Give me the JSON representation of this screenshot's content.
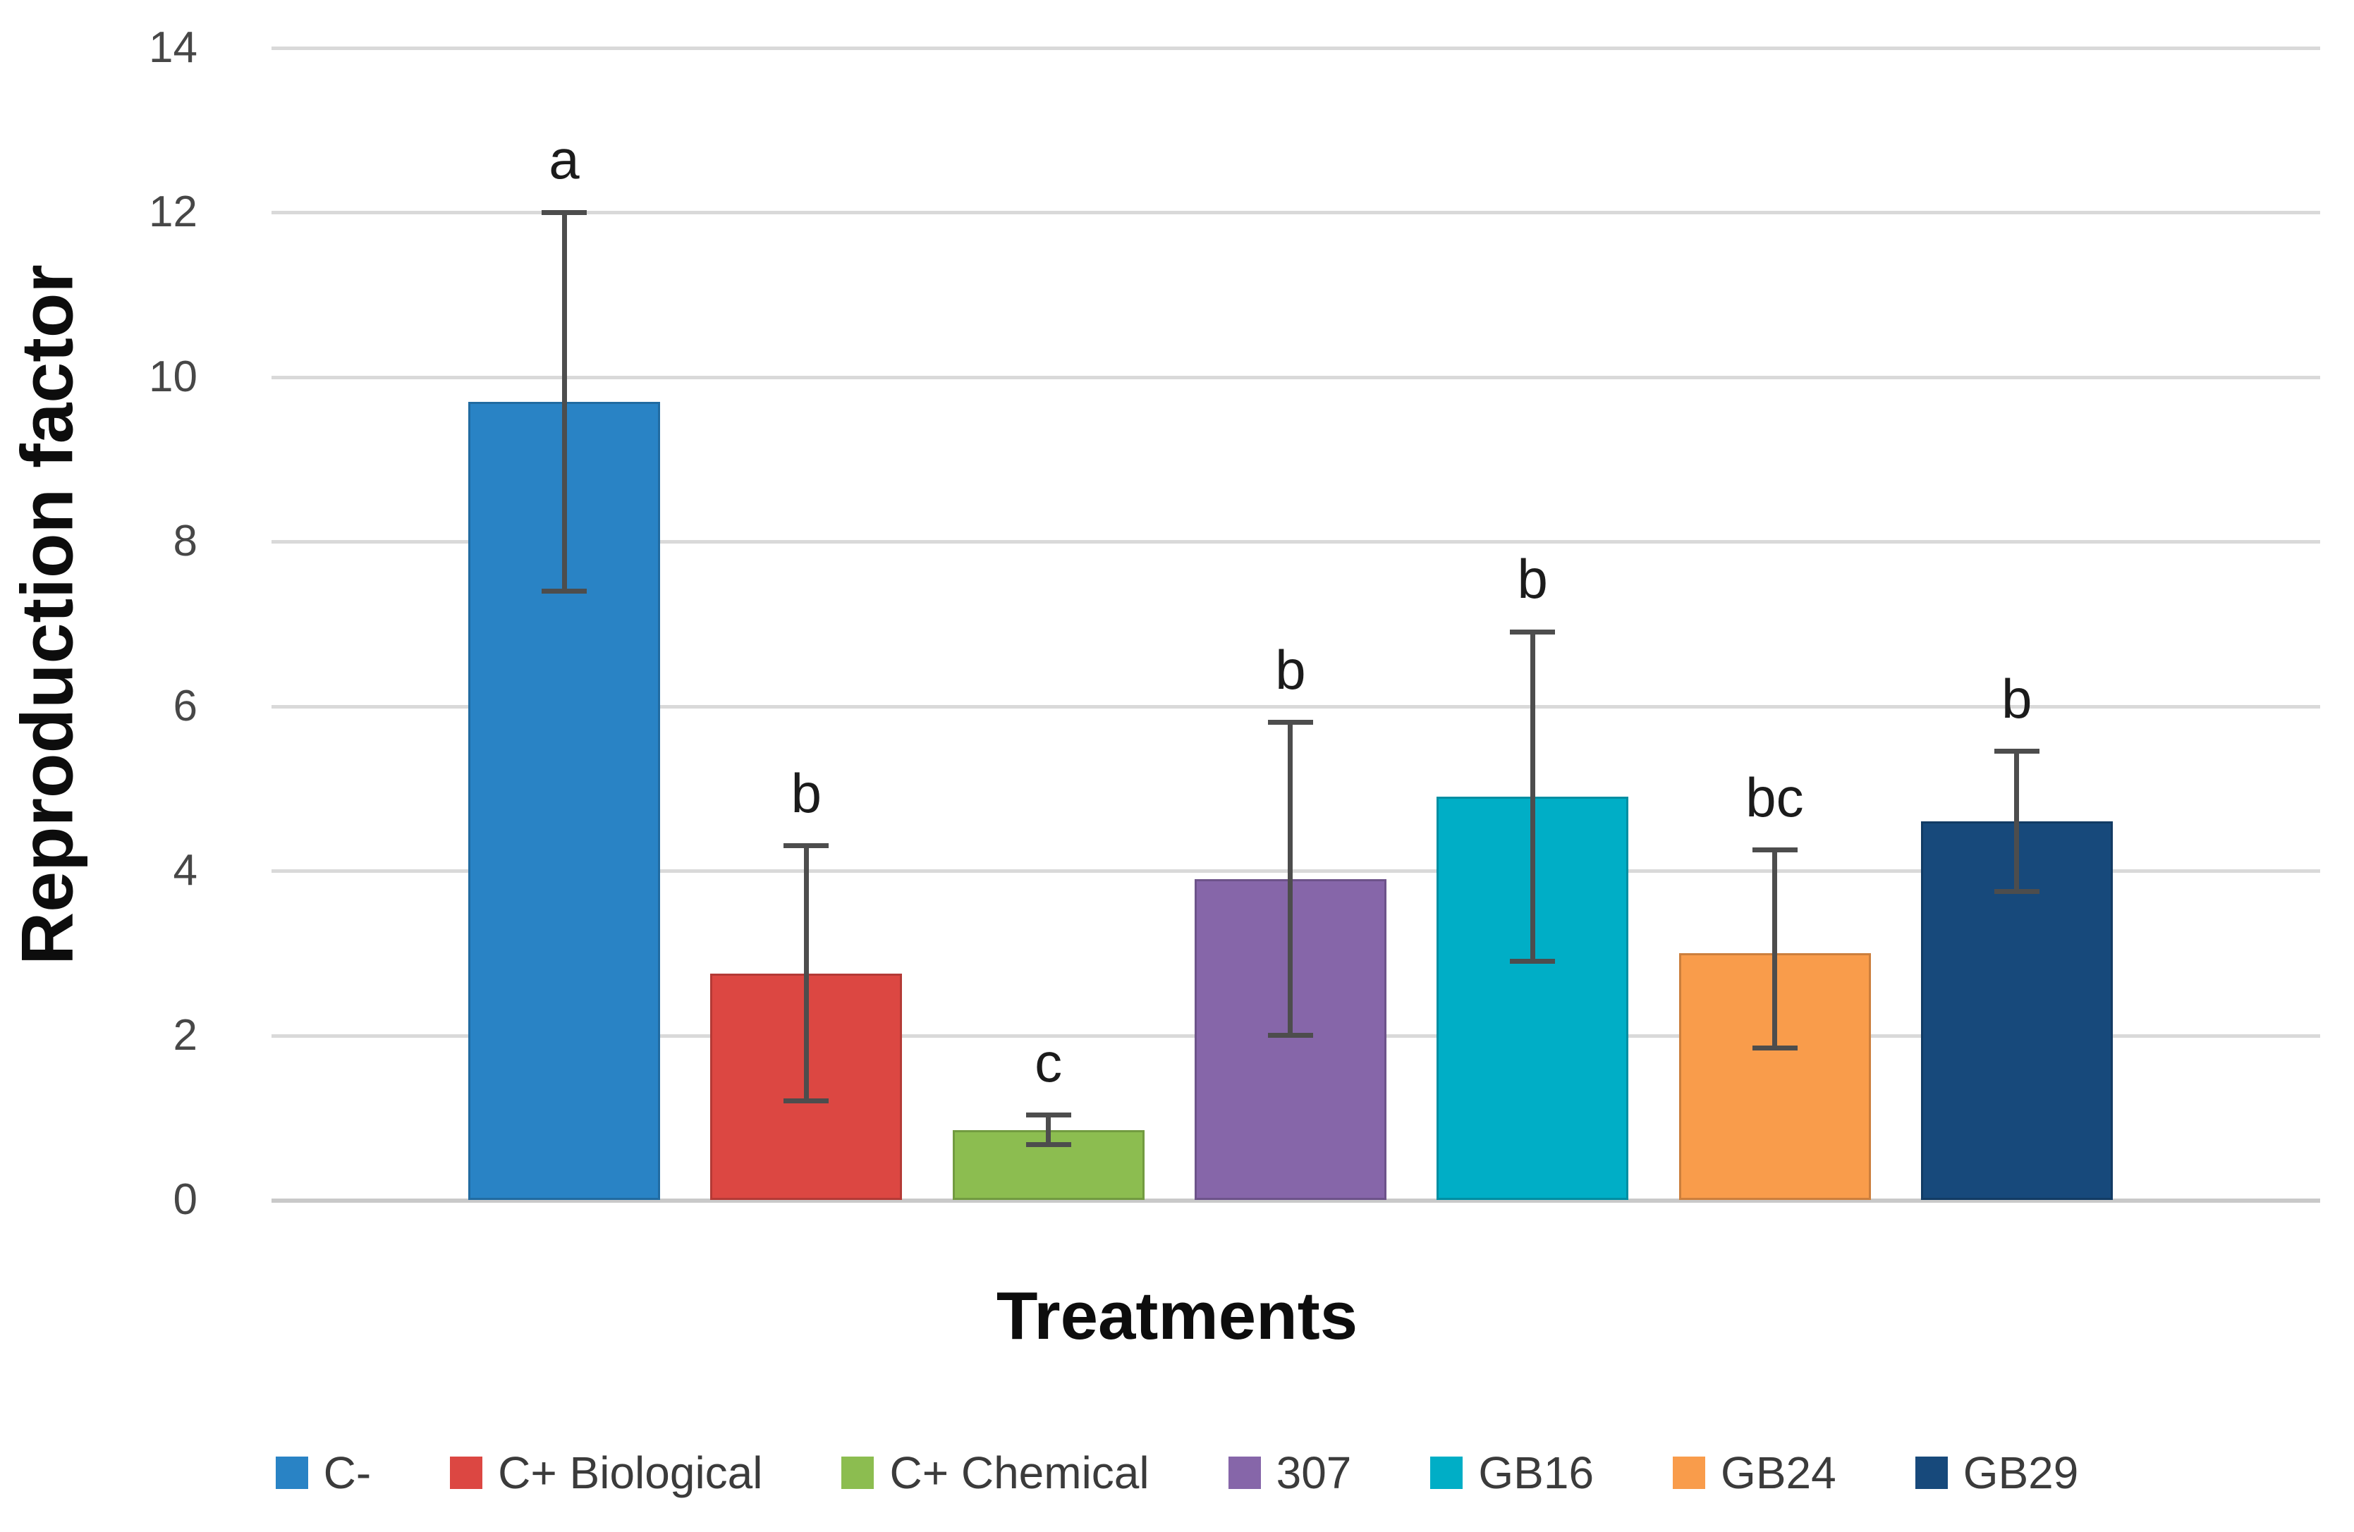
{
  "chart_data": {
    "type": "bar",
    "title": "",
    "xlabel": "Treatments",
    "ylabel": "Reproduction factor",
    "categories": [
      "C-",
      "C+ Biological",
      "C+ Chemical",
      "307",
      "GB16",
      "GB24",
      "GB29"
    ],
    "values": [
      9.7,
      2.75,
      0.85,
      3.9,
      4.9,
      3.0,
      4.6
    ],
    "error_low": [
      7.4,
      1.2,
      0.67,
      2.0,
      2.9,
      1.85,
      3.75
    ],
    "error_high": [
      12.0,
      4.3,
      1.03,
      5.8,
      6.9,
      4.25,
      5.45
    ],
    "sig_letters": [
      "a",
      "b",
      "c",
      "b",
      "b",
      "bc",
      "b"
    ],
    "colors": [
      "#2983C5",
      "#DC4742",
      "#8CBD50",
      "#8666A9",
      "#00AEC6",
      "#F99C4B",
      "#17497B"
    ],
    "y_ticks": [
      0,
      2,
      4,
      6,
      8,
      10,
      12,
      14
    ],
    "ylim": [
      0,
      14
    ],
    "grid": "horizontal",
    "legend_position": "bottom",
    "error_bar_color": "#4d4d4d",
    "gridline_color": "#d9d9d9"
  }
}
